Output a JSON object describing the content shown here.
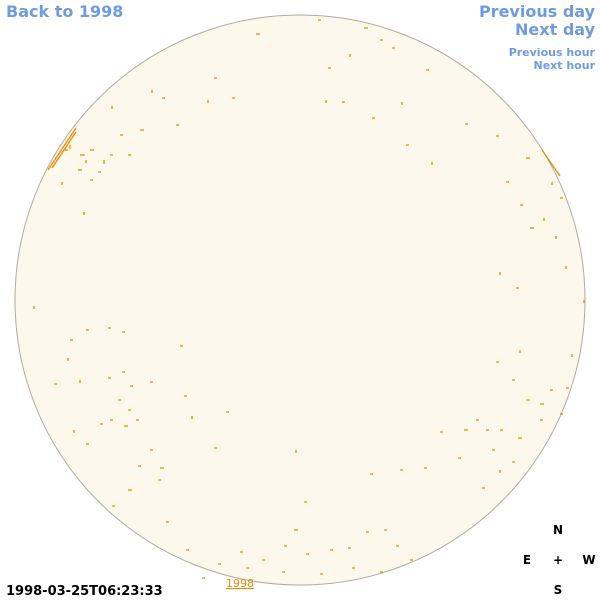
{
  "links": {
    "back_to_year": "Back to 1998",
    "previous_day": "Previous day",
    "next_day": "Next day",
    "previous_hour": "Previous hour",
    "next_hour": "Next hour"
  },
  "timestamp": "1998-03-25T06:23:33",
  "year_label": "1998",
  "compass": {
    "north": "N",
    "east": "E",
    "center": "+",
    "west": "W",
    "south": "S"
  }
}
